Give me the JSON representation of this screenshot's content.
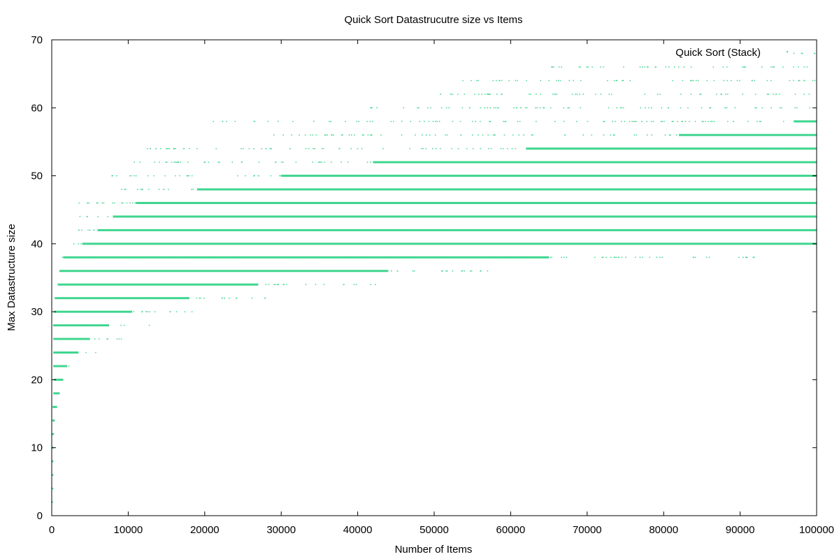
{
  "chart_data": {
    "type": "scatter",
    "title": "Quick Sort Datastrucutre size vs Items",
    "xlabel": "Number of Items",
    "ylabel": "Max Datastructure size",
    "xlim": [
      0,
      100000
    ],
    "ylim": [
      0,
      70
    ],
    "x_ticks": [
      "0",
      "10000",
      "20000",
      "30000",
      "40000",
      "50000",
      "60000",
      "70000",
      "80000",
      "90000",
      "100000"
    ],
    "y_ticks": [
      "0",
      "10",
      "20",
      "30",
      "40",
      "50",
      "60",
      "70"
    ],
    "grid": false,
    "legend_position": "top-right",
    "series": [
      {
        "name": "Quick Sort (Stack)",
        "color": "#3fd68f",
        "marker": "dot",
        "bands": [
          {
            "y": 2,
            "dense": [
              0,
              80
            ],
            "sparse": [
              0,
              120
            ]
          },
          {
            "y": 4,
            "dense": [
              0,
              100
            ],
            "sparse": [
              0,
              150
            ]
          },
          {
            "y": 6,
            "dense": [
              0,
              120
            ],
            "sparse": [
              0,
              180
            ]
          },
          {
            "y": 8,
            "dense": [
              0,
              150
            ],
            "sparse": [
              0,
              200
            ]
          },
          {
            "y": 10,
            "dense": [
              0,
              200
            ],
            "sparse": [
              0,
              250
            ]
          },
          {
            "y": 12,
            "dense": [
              0,
              250
            ],
            "sparse": [
              0,
              300
            ]
          },
          {
            "y": 14,
            "dense": [
              100,
              350
            ],
            "sparse": [
              50,
              400
            ]
          },
          {
            "y": 16,
            "dense": [
              100,
              700
            ],
            "sparse": [
              80,
              800
            ]
          },
          {
            "y": 18,
            "dense": [
              200,
              1000
            ],
            "sparse": [
              150,
              1100
            ]
          },
          {
            "y": 20,
            "dense": [
              300,
              1500
            ],
            "sparse": [
              200,
              1600
            ]
          },
          {
            "y": 22,
            "dense": [
              200,
              2000
            ],
            "sparse": [
              150,
              2700
            ]
          },
          {
            "y": 24,
            "dense": [
              200,
              3500
            ],
            "sparse": [
              150,
              5900
            ]
          },
          {
            "y": 26,
            "dense": [
              200,
              5000
            ],
            "sparse": [
              150,
              10400
            ]
          },
          {
            "y": 28,
            "dense": [
              200,
              7500
            ],
            "sparse": [
              150,
              13500
            ]
          },
          {
            "y": 30,
            "dense": [
              300,
              10500
            ],
            "sparse": [
              200,
              19200
            ]
          },
          {
            "y": 32,
            "dense": [
              400,
              18000
            ],
            "sparse": [
              300,
              28000
            ]
          },
          {
            "y": 34,
            "dense": [
              800,
              27000
            ],
            "sparse": [
              500,
              43000
            ]
          },
          {
            "y": 36,
            "dense": [
              1000,
              44000
            ],
            "sparse": [
              700,
              57500
            ]
          },
          {
            "y": 38,
            "dense": [
              1500,
              65000
            ],
            "sparse": [
              1000,
              92500
            ]
          },
          {
            "y": 40,
            "dense": [
              4000,
              100000
            ],
            "sparse": [
              2200,
              100000
            ]
          },
          {
            "y": 42,
            "dense": [
              6000,
              100000
            ],
            "sparse": [
              3000,
              100000
            ]
          },
          {
            "y": 44,
            "dense": [
              8000,
              100000
            ],
            "sparse": [
              3500,
              100000
            ]
          },
          {
            "y": 46,
            "dense": [
              11000,
              100000
            ],
            "sparse": [
              3500,
              100000
            ]
          },
          {
            "y": 48,
            "dense": [
              19000,
              100000
            ],
            "sparse": [
              7700,
              100000
            ]
          },
          {
            "y": 50,
            "dense": [
              30000,
              100000
            ],
            "sparse": [
              7700,
              100000
            ]
          },
          {
            "y": 52,
            "dense": [
              42000,
              100000
            ],
            "sparse": [
              8900,
              100000
            ]
          },
          {
            "y": 54,
            "dense": [
              62000,
              100000
            ],
            "sparse": [
              12200,
              100000
            ]
          },
          {
            "y": 56,
            "dense": [
              82000,
              100000
            ],
            "sparse": [
              28000,
              100000
            ]
          },
          {
            "y": 58,
            "dense": [
              97000,
              100000
            ],
            "sparse": [
              21000,
              100000
            ]
          },
          {
            "y": 60,
            "dense": null,
            "sparse": [
              41500,
              100000
            ]
          },
          {
            "y": 62,
            "dense": null,
            "sparse": [
              50200,
              100000
            ]
          },
          {
            "y": 64,
            "dense": null,
            "sparse": [
              52700,
              100000
            ]
          },
          {
            "y": 66,
            "dense": null,
            "sparse": [
              65300,
              100000
            ]
          },
          {
            "y": 68,
            "dense": null,
            "sparse": [
              95800,
              100000
            ]
          }
        ]
      }
    ]
  }
}
